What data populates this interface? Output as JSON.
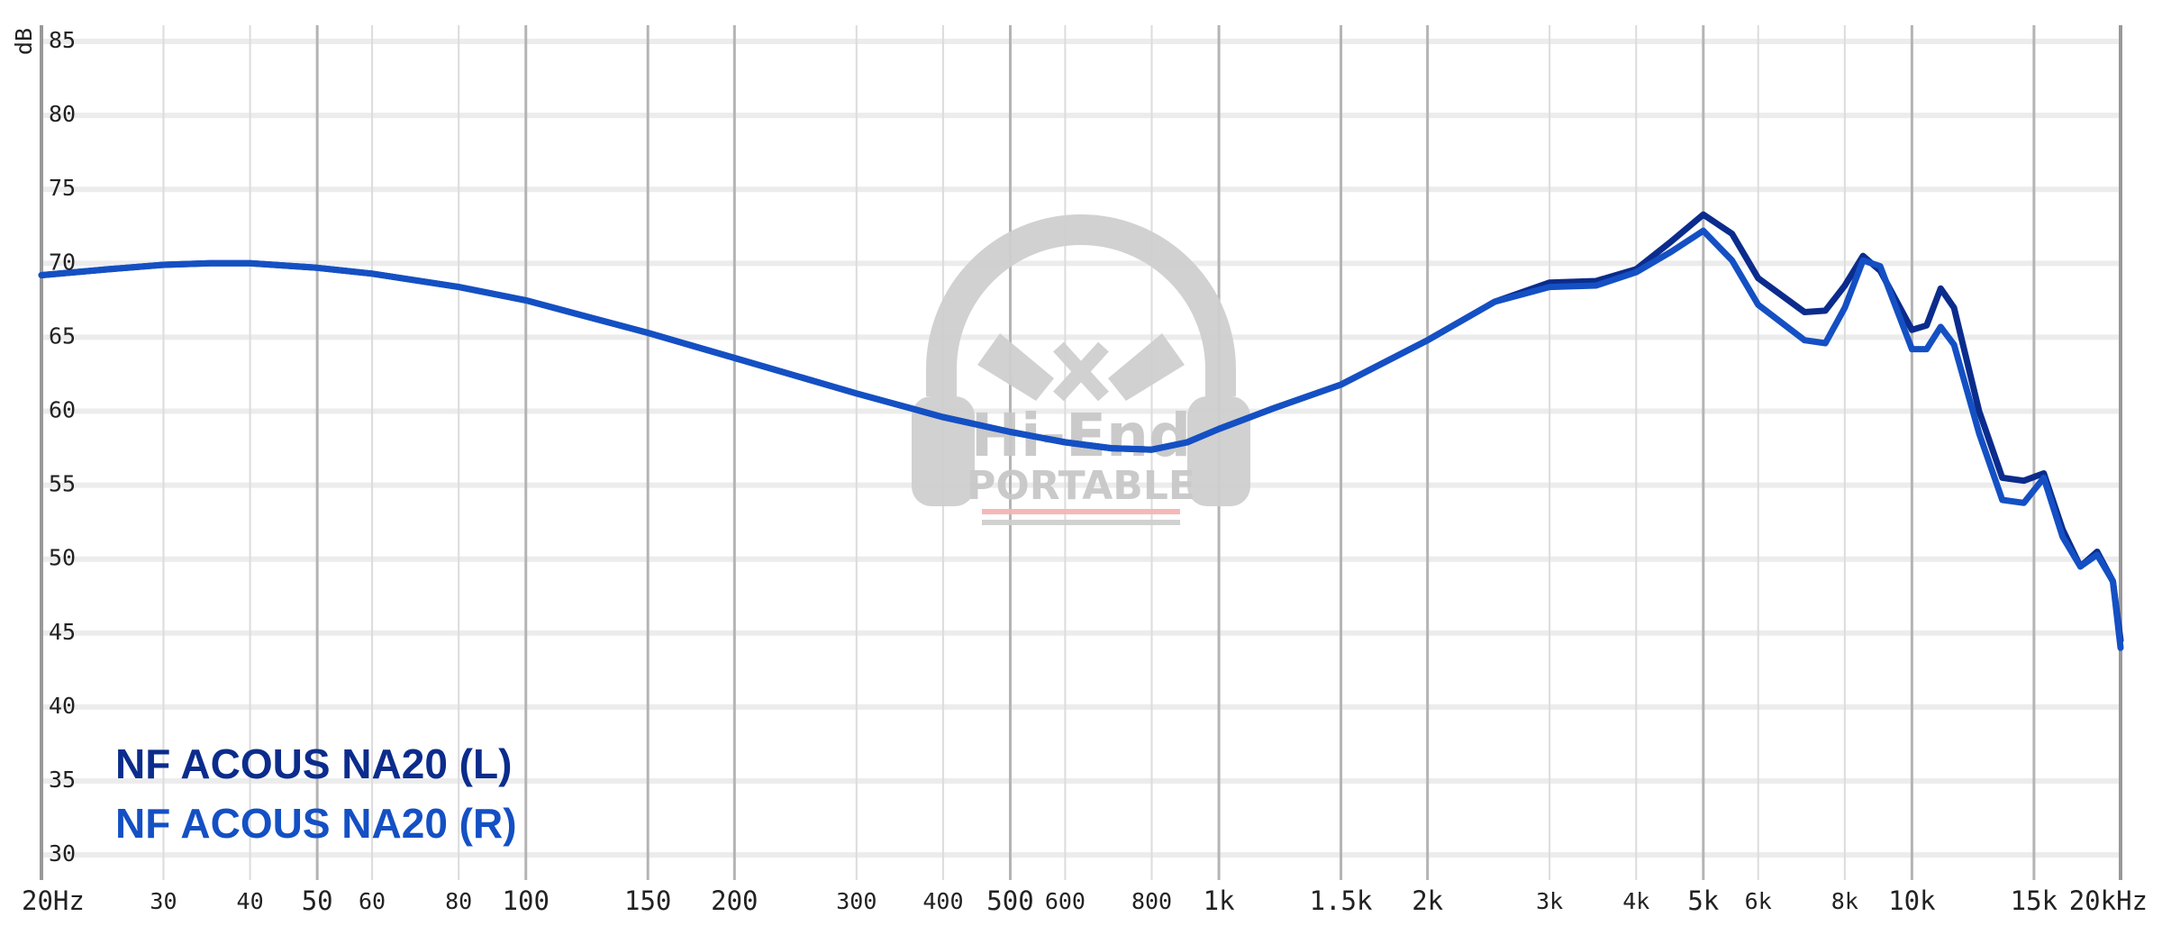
{
  "chart_data": {
    "type": "line",
    "ylabel": "dB",
    "xscale": "log",
    "legend": "lower left",
    "watermark": [
      "Hi-End",
      "PORTABLE"
    ],
    "xlim": [
      20,
      20000
    ],
    "ylim": [
      28.3,
      86.1
    ],
    "yticks": [
      30,
      35,
      40,
      45,
      50,
      55,
      60,
      65,
      70,
      75,
      80,
      85
    ],
    "xticks": [
      {
        "value": 20,
        "label": "20Hz"
      },
      30,
      40,
      50,
      60,
      80,
      100,
      150,
      200,
      300,
      400,
      500,
      600,
      800,
      {
        "value": 1000,
        "label": "1k"
      },
      {
        "value": 1500,
        "label": "1.5k"
      },
      {
        "value": 2000,
        "label": "2k"
      },
      {
        "value": 3000,
        "label": "3k"
      },
      {
        "value": 4000,
        "label": "4k"
      },
      {
        "value": 5000,
        "label": "5k"
      },
      {
        "value": 6000,
        "label": "6k"
      },
      {
        "value": 8000,
        "label": "8k"
      },
      {
        "value": 10000,
        "label": "10k"
      },
      {
        "value": 15000,
        "label": "15k"
      },
      {
        "value": 20000,
        "label": "20kHz"
      }
    ],
    "x": [
      20,
      25,
      30,
      35,
      40,
      50,
      60,
      80,
      100,
      150,
      200,
      300,
      400,
      500,
      600,
      700,
      800,
      900,
      1000,
      1200,
      1500,
      2000,
      2500,
      3000,
      3500,
      4000,
      4500,
      5000,
      5500,
      6000,
      7000,
      7500,
      8000,
      8500,
      9000,
      10000,
      10500,
      11000,
      11500,
      12500,
      13500,
      14500,
      15500,
      16500,
      17500,
      18500,
      19500,
      20000
    ],
    "series": [
      {
        "name": "NF ACOUS NA20 (L)",
        "color": "#0b2c8c",
        "values": [
          69.2,
          69.6,
          69.9,
          70.0,
          70.0,
          69.7,
          69.3,
          68.4,
          67.5,
          65.3,
          63.6,
          61.2,
          59.6,
          58.6,
          57.9,
          57.5,
          57.4,
          57.9,
          58.8,
          60.2,
          61.8,
          64.8,
          67.4,
          68.7,
          68.8,
          69.6,
          71.5,
          73.3,
          72.0,
          69.0,
          66.7,
          66.8,
          68.5,
          70.5,
          69.5,
          65.5,
          65.8,
          68.3,
          67.0,
          60.0,
          55.5,
          55.3,
          55.8,
          52.0,
          49.5,
          50.5,
          48.5,
          44.5
        ]
      },
      {
        "name": "NF ACOUS NA20 (R)",
        "color": "#1450c4",
        "values": [
          69.2,
          69.6,
          69.9,
          70.0,
          70.0,
          69.7,
          69.3,
          68.4,
          67.5,
          65.3,
          63.6,
          61.2,
          59.6,
          58.6,
          57.9,
          57.5,
          57.4,
          57.9,
          58.8,
          60.2,
          61.8,
          64.8,
          67.4,
          68.4,
          68.5,
          69.4,
          70.8,
          72.2,
          70.2,
          67.2,
          64.8,
          64.6,
          67.0,
          70.2,
          69.8,
          64.2,
          64.2,
          65.7,
          64.5,
          58.5,
          54.0,
          53.8,
          55.5,
          51.5,
          49.5,
          50.3,
          48.5,
          44.0
        ]
      }
    ]
  }
}
